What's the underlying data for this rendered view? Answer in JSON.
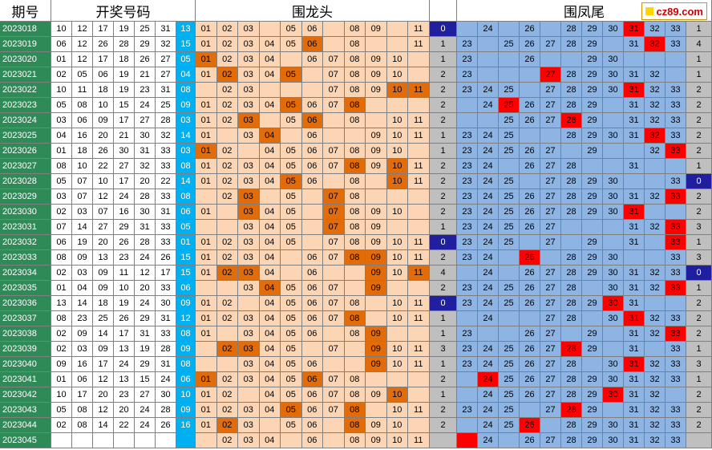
{
  "headers": {
    "period": "期号",
    "winning": "开奖号码",
    "dragon": "围龙头",
    "phoenix": "围凤尾"
  },
  "site_logo": "cz89.com",
  "colors": {
    "period_bg": "#2e8b57",
    "blue_ball": "#00b0f0",
    "dragon_bg": "#fcd5b4",
    "dragon_hit": "#e26b0a",
    "phoenix_bg": "#8db4e2",
    "phoenix_hit": "#ff0000",
    "gap_hit": "#1f1f9f",
    "gap_bg": "#bfbfbf"
  },
  "rows": [
    {
      "period": "2023018",
      "nums": [
        "10",
        "12",
        "17",
        "19",
        "25",
        "31"
      ],
      "blue": "13",
      "dragon": [
        "01",
        "02",
        "03",
        "",
        "05",
        "06",
        "",
        "08",
        "09",
        "",
        "11"
      ],
      "dragon_hits": [],
      "dgap": "0",
      "dgap_hit": true,
      "phoenix": [
        "",
        "24",
        "",
        "26",
        "",
        "28",
        "29",
        "30",
        "31",
        "32",
        "33"
      ],
      "phoenix_hits": [
        8
      ],
      "pgap": "1"
    },
    {
      "period": "2023019",
      "nums": [
        "06",
        "12",
        "26",
        "28",
        "29",
        "32"
      ],
      "blue": "15",
      "dragon": [
        "01",
        "02",
        "03",
        "04",
        "05",
        "06",
        "",
        "08",
        "",
        "",
        "11"
      ],
      "dragon_hits": [
        5
      ],
      "dgap": "1",
      "dgap_hit": false,
      "phoenix": [
        "23",
        "",
        "25",
        "26",
        "27",
        "28",
        "29",
        "",
        "31",
        "32",
        "33"
      ],
      "phoenix_hits": [
        9
      ],
      "pgap": "4"
    },
    {
      "period": "2023020",
      "nums": [
        "01",
        "12",
        "17",
        "18",
        "26",
        "27"
      ],
      "blue": "05",
      "dragon": [
        "01",
        "02",
        "03",
        "04",
        "",
        "06",
        "07",
        "08",
        "09",
        "10",
        ""
      ],
      "dragon_hits": [
        0
      ],
      "dgap": "1",
      "dgap_hit": false,
      "phoenix": [
        "23",
        "",
        "",
        "26",
        "",
        "",
        "29",
        "30",
        "",
        "",
        ""
      ],
      "phoenix_hits": [],
      "pgap": "1"
    },
    {
      "period": "2023021",
      "nums": [
        "02",
        "05",
        "06",
        "19",
        "21",
        "27"
      ],
      "blue": "04",
      "dragon": [
        "01",
        "02",
        "03",
        "04",
        "05",
        "",
        "07",
        "08",
        "09",
        "10",
        ""
      ],
      "dragon_hits": [
        1,
        4
      ],
      "dgap": "2",
      "dgap_hit": false,
      "phoenix": [
        "23",
        "",
        "",
        "",
        "27",
        "28",
        "29",
        "30",
        "31",
        "32",
        ""
      ],
      "phoenix_hits": [
        4
      ],
      "pgap": "1"
    },
    {
      "period": "2023022",
      "nums": [
        "10",
        "11",
        "18",
        "19",
        "23",
        "31"
      ],
      "blue": "08",
      "dragon": [
        "",
        "02",
        "03",
        "",
        "",
        "",
        "07",
        "08",
        "09",
        "10",
        "11"
      ],
      "dragon_hits": [
        9,
        10
      ],
      "dgap": "2",
      "dgap_hit": false,
      "phoenix": [
        "23",
        "24",
        "25",
        "",
        "27",
        "28",
        "29",
        "30",
        "31",
        "32",
        "33"
      ],
      "phoenix_hits": [
        8
      ],
      "pgap": "2"
    },
    {
      "period": "2023023",
      "nums": [
        "05",
        "08",
        "10",
        "15",
        "24",
        "25"
      ],
      "blue": "09",
      "dragon": [
        "01",
        "02",
        "03",
        "04",
        "05",
        "06",
        "07",
        "08",
        "",
        "",
        ""
      ],
      "dragon_hits": [
        4,
        7
      ],
      "dgap": "2",
      "dgap_hit": false,
      "phoenix": [
        "",
        "24",
        "25",
        "26",
        "27",
        "28",
        "29",
        "",
        "31",
        "32",
        "33"
      ],
      "phoenix_hits": [
        2
      ],
      "pgap": "2"
    },
    {
      "period": "2023024",
      "nums": [
        "03",
        "06",
        "09",
        "17",
        "27",
        "28"
      ],
      "blue": "03",
      "dragon": [
        "01",
        "02",
        "03",
        "",
        "05",
        "06",
        "",
        "08",
        "",
        "10",
        "11"
      ],
      "dragon_hits": [
        2,
        5
      ],
      "dgap": "2",
      "dgap_hit": false,
      "phoenix": [
        "",
        "",
        "25",
        "26",
        "27",
        "28",
        "29",
        "",
        "31",
        "32",
        "33"
      ],
      "phoenix_hits": [
        5
      ],
      "pgap": "2"
    },
    {
      "period": "2023025",
      "nums": [
        "04",
        "16",
        "20",
        "21",
        "30",
        "32"
      ],
      "blue": "14",
      "dragon": [
        "01",
        "",
        "03",
        "04",
        "",
        "06",
        "",
        "",
        "09",
        "10",
        "11"
      ],
      "dragon_hits": [
        3
      ],
      "dgap": "1",
      "dgap_hit": false,
      "phoenix": [
        "23",
        "24",
        "25",
        "",
        "",
        "28",
        "29",
        "30",
        "31",
        "32",
        "33"
      ],
      "phoenix_hits": [
        9
      ],
      "pgap": "2"
    },
    {
      "period": "2023026",
      "nums": [
        "01",
        "18",
        "26",
        "30",
        "31",
        "33"
      ],
      "blue": "03",
      "dragon": [
        "01",
        "02",
        "",
        "04",
        "05",
        "06",
        "07",
        "08",
        "09",
        "10",
        ""
      ],
      "dragon_hits": [
        0
      ],
      "dgap": "1",
      "dgap_hit": false,
      "phoenix": [
        "23",
        "24",
        "25",
        "26",
        "27",
        "",
        "29",
        "",
        "",
        "32",
        "33"
      ],
      "phoenix_hits": [
        10
      ],
      "pgap": "2"
    },
    {
      "period": "2023027",
      "nums": [
        "08",
        "10",
        "22",
        "27",
        "32",
        "33"
      ],
      "blue": "08",
      "dragon": [
        "01",
        "02",
        "03",
        "04",
        "05",
        "06",
        "07",
        "08",
        "09",
        "10",
        "11"
      ],
      "dragon_hits": [
        7,
        9
      ],
      "dgap": "2",
      "dgap_hit": false,
      "phoenix": [
        "23",
        "24",
        "",
        "26",
        "27",
        "28",
        "",
        "",
        "31",
        "",
        ""
      ],
      "phoenix_hits": [],
      "pgap": "1"
    },
    {
      "period": "2023028",
      "nums": [
        "05",
        "07",
        "10",
        "17",
        "20",
        "22"
      ],
      "blue": "14",
      "dragon": [
        "01",
        "02",
        "03",
        "04",
        "05",
        "06",
        "",
        "08",
        "",
        "10",
        "11"
      ],
      "dragon_hits": [
        4,
        9
      ],
      "dgap": "2",
      "dgap_hit": false,
      "phoenix": [
        "23",
        "24",
        "25",
        "",
        "27",
        "28",
        "29",
        "30",
        "",
        "",
        "33"
      ],
      "phoenix_hits": [],
      "pgap": "0"
    },
    {
      "period": "2023029",
      "nums": [
        "03",
        "07",
        "12",
        "24",
        "28",
        "33"
      ],
      "blue": "08",
      "dragon": [
        "",
        "02",
        "03",
        "",
        "05",
        "",
        "07",
        "08",
        "",
        "",
        ""
      ],
      "dragon_hits": [
        2,
        6
      ],
      "dgap": "2",
      "dgap_hit": false,
      "phoenix": [
        "23",
        "24",
        "25",
        "26",
        "27",
        "28",
        "29",
        "30",
        "31",
        "32",
        "33"
      ],
      "phoenix_hits": [
        10
      ],
      "pgap": "2"
    },
    {
      "period": "2023030",
      "nums": [
        "02",
        "03",
        "07",
        "16",
        "30",
        "31"
      ],
      "blue": "06",
      "dragon": [
        "01",
        "",
        "03",
        "04",
        "05",
        "",
        "07",
        "08",
        "09",
        "10",
        ""
      ],
      "dragon_hits": [
        2,
        6
      ],
      "dgap": "2",
      "dgap_hit": false,
      "phoenix": [
        "23",
        "24",
        "25",
        "26",
        "27",
        "28",
        "29",
        "30",
        "31",
        "",
        ""
      ],
      "phoenix_hits": [
        8
      ],
      "pgap": "2"
    },
    {
      "period": "2023031",
      "nums": [
        "07",
        "14",
        "27",
        "29",
        "31",
        "33"
      ],
      "blue": "05",
      "dragon": [
        "",
        "",
        "03",
        "04",
        "05",
        "",
        "07",
        "08",
        "09",
        "",
        ""
      ],
      "dragon_hits": [
        6
      ],
      "dgap": "1",
      "dgap_hit": false,
      "phoenix": [
        "23",
        "24",
        "25",
        "26",
        "27",
        "",
        "",
        "",
        "31",
        "32",
        "33"
      ],
      "phoenix_hits": [
        10
      ],
      "pgap": "3"
    },
    {
      "period": "2023032",
      "nums": [
        "06",
        "19",
        "20",
        "26",
        "28",
        "33"
      ],
      "blue": "01",
      "dragon": [
        "01",
        "02",
        "03",
        "04",
        "05",
        "",
        "07",
        "08",
        "09",
        "10",
        "11"
      ],
      "dragon_hits": [],
      "dgap": "0",
      "dgap_hit": true,
      "phoenix": [
        "23",
        "24",
        "25",
        "",
        "27",
        "",
        "29",
        "",
        "31",
        "",
        "33"
      ],
      "phoenix_hits": [
        10
      ],
      "pgap": "1"
    },
    {
      "period": "2023033",
      "nums": [
        "08",
        "09",
        "13",
        "23",
        "24",
        "26"
      ],
      "blue": "15",
      "dragon": [
        "01",
        "02",
        "03",
        "04",
        "",
        "06",
        "07",
        "08",
        "09",
        "10",
        "11"
      ],
      "dragon_hits": [
        7,
        8
      ],
      "dgap": "2",
      "dgap_hit": false,
      "phoenix": [
        "23",
        "24",
        "",
        "26",
        "",
        "28",
        "29",
        "30",
        "",
        "",
        "33"
      ],
      "phoenix_hits": [
        3
      ],
      "pgap": "3"
    },
    {
      "period": "2023034",
      "nums": [
        "02",
        "03",
        "09",
        "11",
        "12",
        "17"
      ],
      "blue": "15",
      "dragon": [
        "01",
        "02",
        "03",
        "04",
        "",
        "06",
        "",
        "",
        "09",
        "10",
        "11"
      ],
      "dragon_hits": [
        1,
        2,
        8,
        10
      ],
      "dgap": "4",
      "dgap_hit": false,
      "phoenix": [
        "",
        "24",
        "",
        "26",
        "27",
        "28",
        "29",
        "30",
        "31",
        "32",
        "33"
      ],
      "phoenix_hits": [],
      "pgap": "0"
    },
    {
      "period": "2023035",
      "nums": [
        "01",
        "04",
        "09",
        "10",
        "20",
        "33"
      ],
      "blue": "06",
      "dragon": [
        "",
        "",
        "03",
        "04",
        "05",
        "06",
        "07",
        "",
        "09",
        "",
        ""
      ],
      "dragon_hits": [
        3,
        8
      ],
      "dgap": "2",
      "dgap_hit": false,
      "phoenix": [
        "23",
        "24",
        "25",
        "26",
        "27",
        "28",
        "",
        "30",
        "31",
        "32",
        "33"
      ],
      "phoenix_hits": [
        10
      ],
      "pgap": "1"
    },
    {
      "period": "2023036",
      "nums": [
        "13",
        "14",
        "18",
        "19",
        "24",
        "30"
      ],
      "blue": "09",
      "dragon": [
        "01",
        "02",
        "",
        "04",
        "05",
        "06",
        "07",
        "08",
        "",
        "10",
        "11"
      ],
      "dragon_hits": [],
      "dgap": "0",
      "dgap_hit": true,
      "phoenix": [
        "23",
        "24",
        "25",
        "26",
        "27",
        "28",
        "29",
        "30",
        "31",
        "",
        ""
      ],
      "phoenix_hits": [
        7
      ],
      "pgap": "2"
    },
    {
      "period": "2023037",
      "nums": [
        "08",
        "23",
        "25",
        "26",
        "29",
        "31"
      ],
      "blue": "12",
      "dragon": [
        "01",
        "02",
        "03",
        "04",
        "05",
        "06",
        "07",
        "08",
        "",
        "10",
        "11"
      ],
      "dragon_hits": [
        7
      ],
      "dgap": "1",
      "dgap_hit": false,
      "phoenix": [
        "",
        "24",
        "",
        "",
        "27",
        "28",
        "",
        "30",
        "31",
        "32",
        "33"
      ],
      "phoenix_hits": [
        8
      ],
      "pgap": "2"
    },
    {
      "period": "2023038",
      "nums": [
        "02",
        "09",
        "14",
        "17",
        "31",
        "33"
      ],
      "blue": "08",
      "dragon": [
        "01",
        "",
        "03",
        "04",
        "05",
        "06",
        "",
        "08",
        "09",
        "",
        ""
      ],
      "dragon_hits": [
        8
      ],
      "dgap": "1",
      "dgap_hit": false,
      "phoenix": [
        "23",
        "",
        "",
        "26",
        "27",
        "",
        "29",
        "",
        "31",
        "32",
        "33"
      ],
      "phoenix_hits": [
        10
      ],
      "pgap": "2"
    },
    {
      "period": "2023039",
      "nums": [
        "02",
        "03",
        "09",
        "13",
        "19",
        "28"
      ],
      "blue": "09",
      "dragon": [
        "",
        "02",
        "03",
        "04",
        "05",
        "",
        "07",
        "",
        "09",
        "10",
        "11"
      ],
      "dragon_hits": [
        1,
        2,
        8
      ],
      "dgap": "3",
      "dgap_hit": false,
      "phoenix": [
        "23",
        "24",
        "25",
        "26",
        "27",
        "28",
        "29",
        "",
        "31",
        "",
        "33"
      ],
      "phoenix_hits": [
        5
      ],
      "pgap": "1"
    },
    {
      "period": "2023040",
      "nums": [
        "09",
        "16",
        "17",
        "24",
        "29",
        "31"
      ],
      "blue": "08",
      "dragon": [
        "",
        "",
        "03",
        "04",
        "05",
        "06",
        "",
        "",
        "09",
        "10",
        "11"
      ],
      "dragon_hits": [
        8
      ],
      "dgap": "1",
      "dgap_hit": false,
      "phoenix": [
        "23",
        "24",
        "25",
        "26",
        "27",
        "28",
        "",
        "30",
        "31",
        "32",
        "33"
      ],
      "phoenix_hits": [
        8
      ],
      "pgap": "3"
    },
    {
      "period": "2023041",
      "nums": [
        "01",
        "06",
        "12",
        "13",
        "15",
        "24"
      ],
      "blue": "06",
      "dragon": [
        "01",
        "02",
        "03",
        "04",
        "05",
        "06",
        "07",
        "08",
        "",
        "",
        ""
      ],
      "dragon_hits": [
        0,
        5
      ],
      "dgap": "2",
      "dgap_hit": false,
      "phoenix": [
        "",
        "24",
        "25",
        "26",
        "27",
        "28",
        "29",
        "30",
        "31",
        "32",
        "33"
      ],
      "phoenix_hits": [
        1
      ],
      "pgap": "1"
    },
    {
      "period": "2023042",
      "nums": [
        "10",
        "17",
        "20",
        "23",
        "27",
        "30"
      ],
      "blue": "10",
      "dragon": [
        "01",
        "02",
        "",
        "04",
        "05",
        "06",
        "07",
        "08",
        "09",
        "10",
        ""
      ],
      "dragon_hits": [
        9
      ],
      "dgap": "1",
      "dgap_hit": false,
      "phoenix": [
        "",
        "24",
        "25",
        "26",
        "27",
        "28",
        "29",
        "30",
        "31",
        "32",
        ""
      ],
      "phoenix_hits": [
        7
      ],
      "pgap": "2"
    },
    {
      "period": "2023043",
      "nums": [
        "05",
        "08",
        "12",
        "20",
        "24",
        "28"
      ],
      "blue": "09",
      "dragon": [
        "01",
        "02",
        "03",
        "04",
        "05",
        "06",
        "07",
        "08",
        "",
        "10",
        "11"
      ],
      "dragon_hits": [
        4,
        7
      ],
      "dgap": "2",
      "dgap_hit": false,
      "phoenix": [
        "23",
        "24",
        "25",
        "",
        "27",
        "28",
        "29",
        "",
        "31",
        "32",
        "33"
      ],
      "phoenix_hits": [
        5
      ],
      "pgap": "2"
    },
    {
      "period": "2023044",
      "nums": [
        "02",
        "08",
        "14",
        "22",
        "24",
        "26"
      ],
      "blue": "16",
      "dragon": [
        "01",
        "02",
        "03",
        "",
        "05",
        "06",
        "",
        "08",
        "09",
        "10",
        ""
      ],
      "dragon_hits": [
        1,
        7
      ],
      "dgap": "2",
      "dgap_hit": false,
      "phoenix": [
        "",
        "24",
        "25",
        "26",
        "",
        "28",
        "29",
        "30",
        "31",
        "32",
        "33"
      ],
      "phoenix_hits": [
        3
      ],
      "pgap": "2"
    },
    {
      "period": "2023045",
      "nums": [
        "",
        "",
        "",
        "",
        "",
        ""
      ],
      "blue": "",
      "dragon": [
        "",
        "02",
        "03",
        "04",
        "",
        "06",
        "",
        "08",
        "09",
        "10",
        "11"
      ],
      "dragon_hits": [],
      "dgap": "",
      "dgap_hit": false,
      "phoenix": [
        "",
        "24",
        "",
        "26",
        "27",
        "28",
        "29",
        "30",
        "31",
        "32",
        "33"
      ],
      "phoenix_hits": [
        0
      ],
      "pgap": ""
    }
  ]
}
